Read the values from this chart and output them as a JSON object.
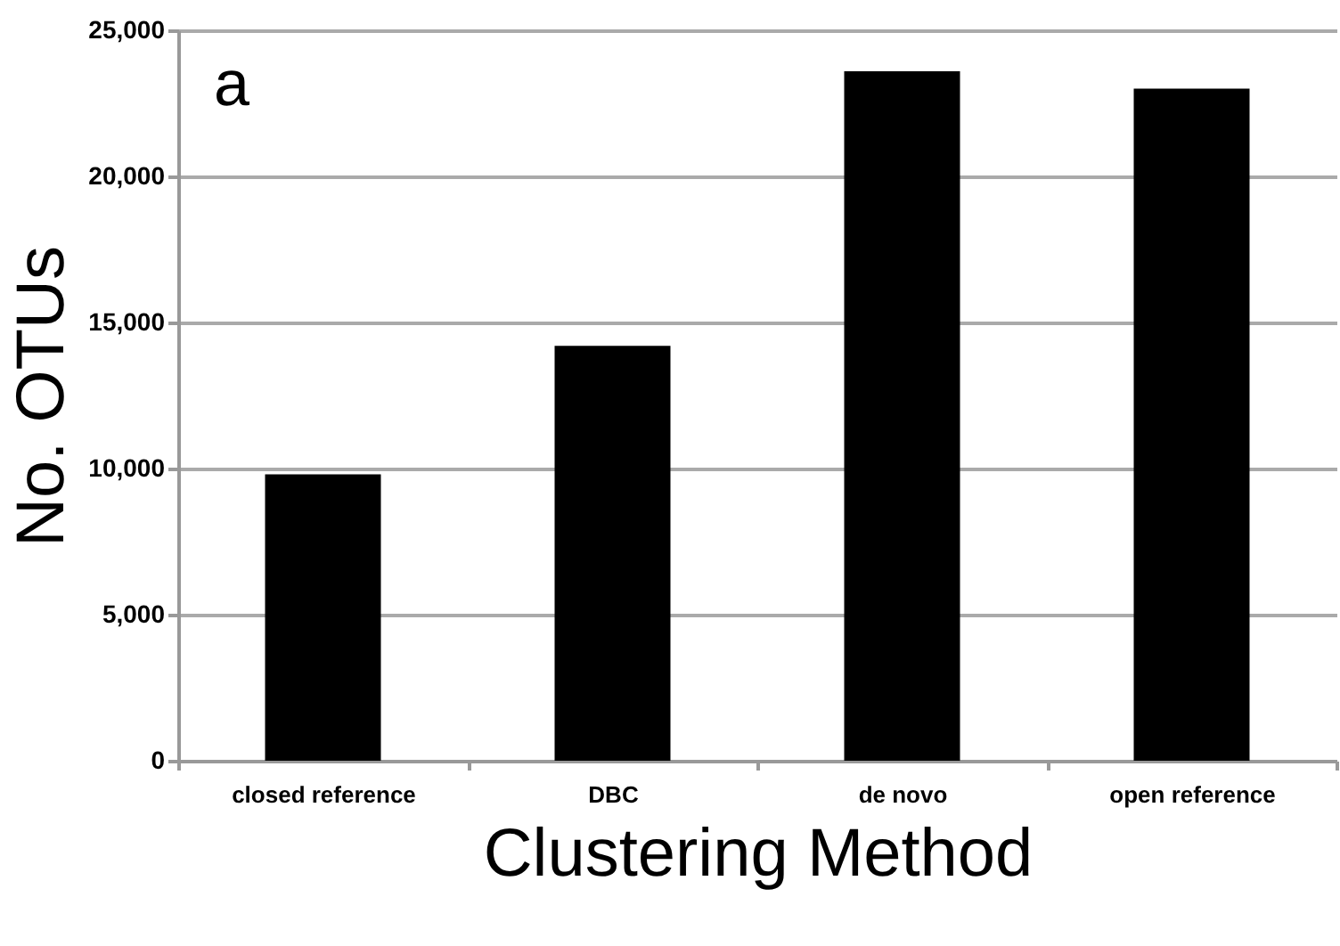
{
  "chart_data": {
    "type": "bar",
    "xlabel": "Clustering Method",
    "ylabel": "No. OTUs",
    "categories": [
      "closed reference",
      "DBC",
      "de novo",
      "open reference"
    ],
    "values": [
      9800,
      14200,
      23600,
      23000
    ],
    "color": "#000000",
    "ylim": [
      0,
      25000
    ],
    "yticks": [
      {
        "value": 0,
        "label": "0"
      },
      {
        "value": 5000,
        "label": "5,000"
      },
      {
        "value": 10000,
        "label": "10,000"
      },
      {
        "value": 15000,
        "label": "15,000"
      },
      {
        "value": 20000,
        "label": "20,000"
      },
      {
        "value": 25000,
        "label": "25,000"
      }
    ],
    "grid": "y",
    "annotations": [
      "a"
    ]
  }
}
